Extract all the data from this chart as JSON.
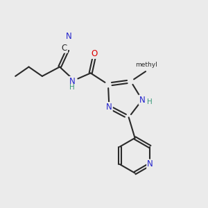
{
  "bg_color": "#ebebeb",
  "bond_color": "#2a2a2a",
  "atom_colors": {
    "N": "#2222cc",
    "O": "#dd0000",
    "C": "#2a2a2a",
    "H": "#3a9a7a"
  },
  "font_size_atom": 8.5,
  "fig_size": [
    3.0,
    3.0
  ],
  "dpi": 100,
  "xlim": [
    0,
    10
  ],
  "ylim": [
    0,
    10
  ]
}
